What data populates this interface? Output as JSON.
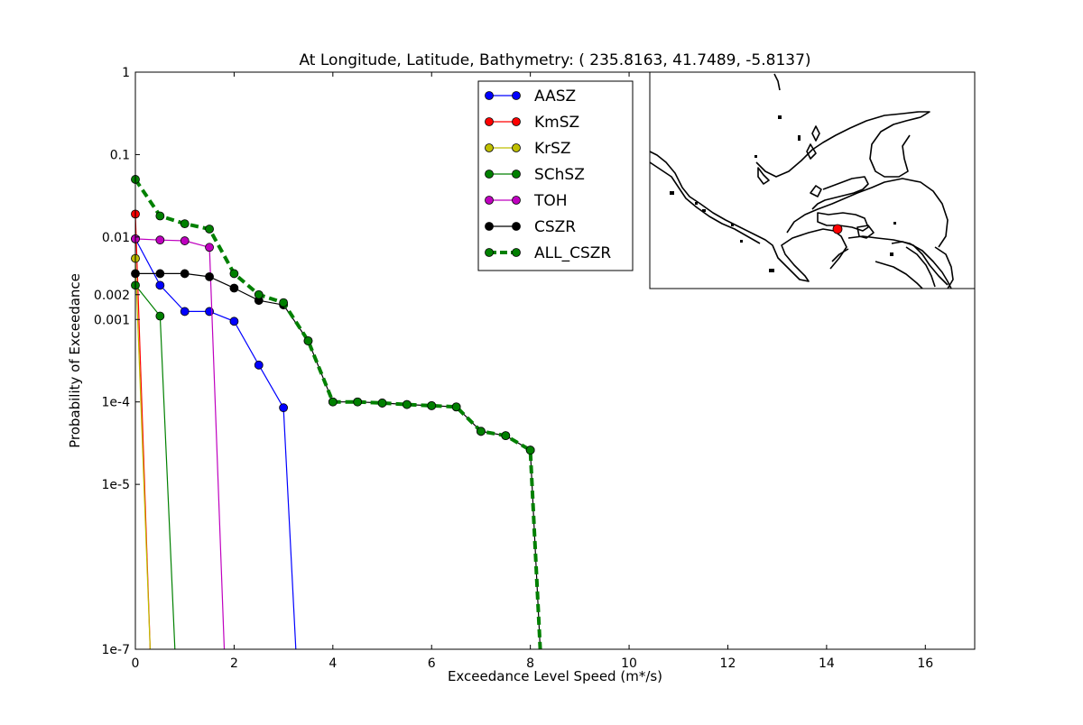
{
  "chart_data": {
    "type": "line",
    "title": "At Longitude, Latitude, Bathymetry:  ( 235.8163,  41.7489,  -5.8137)",
    "xlabel": "Exceedance Level Speed (m*/s)",
    "ylabel": "Probability of Exceedance",
    "xlim": [
      0,
      17
    ],
    "ylim": [
      1e-07,
      1
    ],
    "yscale": "log",
    "grid": false,
    "legend_position": "top-center",
    "x_ticks": [
      0,
      2,
      4,
      6,
      8,
      10,
      12,
      14,
      16
    ],
    "x_tick_labels": [
      "0",
      "2",
      "4",
      "6",
      "8",
      "10",
      "12",
      "14",
      "16"
    ],
    "y_ticks": [
      1,
      0.1,
      0.01,
      0.002,
      0.001,
      0.0001,
      1e-05,
      1e-07
    ],
    "y_tick_labels": [
      "1",
      "0.1",
      "0.01",
      "0.002",
      "0.001",
      "1e-4",
      "1e-5",
      "1e-7"
    ],
    "series": [
      {
        "name": "AASZ",
        "color": "#0000ff",
        "dashed": false,
        "x": [
          0,
          0.5,
          1.0,
          1.5,
          2.0,
          2.5,
          3.0,
          3.25
        ],
        "y": [
          0.0095,
          0.0026,
          0.00125,
          0.00125,
          0.00095,
          0.00028,
          8.5e-05,
          1e-07
        ]
      },
      {
        "name": "KmSZ",
        "color": "#ff0000",
        "dashed": false,
        "x": [
          0,
          0.3
        ],
        "y": [
          0.019,
          1e-07
        ]
      },
      {
        "name": "KrSZ",
        "color": "#bfbf00",
        "dashed": false,
        "x": [
          0,
          0.3
        ],
        "y": [
          0.0055,
          1e-07
        ]
      },
      {
        "name": "SChSZ",
        "color": "#008000",
        "dashed": false,
        "x": [
          0,
          0.5,
          0.8
        ],
        "y": [
          0.0026,
          0.0011,
          1e-07
        ]
      },
      {
        "name": "TOH",
        "color": "#bf00bf",
        "dashed": false,
        "x": [
          0,
          0.5,
          1.0,
          1.5,
          1.8
        ],
        "y": [
          0.0095,
          0.0092,
          0.009,
          0.0075,
          1e-07
        ]
      },
      {
        "name": "CSZR",
        "color": "#000000",
        "dashed": false,
        "x": [
          0,
          0.5,
          1.0,
          1.5,
          2.0,
          2.5,
          3.0,
          3.5,
          4.0,
          4.5,
          5.0,
          5.5,
          6.0,
          6.5,
          7.0,
          7.5,
          8.0,
          8.2
        ],
        "y": [
          0.0036,
          0.0036,
          0.0036,
          0.0033,
          0.0024,
          0.0017,
          0.0015,
          0.00055,
          0.0001,
          0.0001,
          9.7e-05,
          9.3e-05,
          9e-05,
          8.7e-05,
          4.4e-05,
          3.9e-05,
          2.6e-05,
          1e-07
        ]
      },
      {
        "name": "ALL_CSZR",
        "color": "#008000",
        "dashed": true,
        "x": [
          0,
          0.5,
          1.0,
          1.5,
          2.0,
          2.5,
          3.0,
          3.5,
          4.0,
          4.5,
          5.0,
          5.5,
          6.0,
          6.5,
          7.0,
          7.5,
          8.0,
          8.2
        ],
        "y": [
          0.05,
          0.018,
          0.0145,
          0.0125,
          0.0036,
          0.002,
          0.0016,
          0.00055,
          0.0001,
          0.0001,
          9.7e-05,
          9.3e-05,
          9e-05,
          8.7e-05,
          4.4e-05,
          3.9e-05,
          2.6e-05,
          1e-07
        ]
      }
    ]
  }
}
